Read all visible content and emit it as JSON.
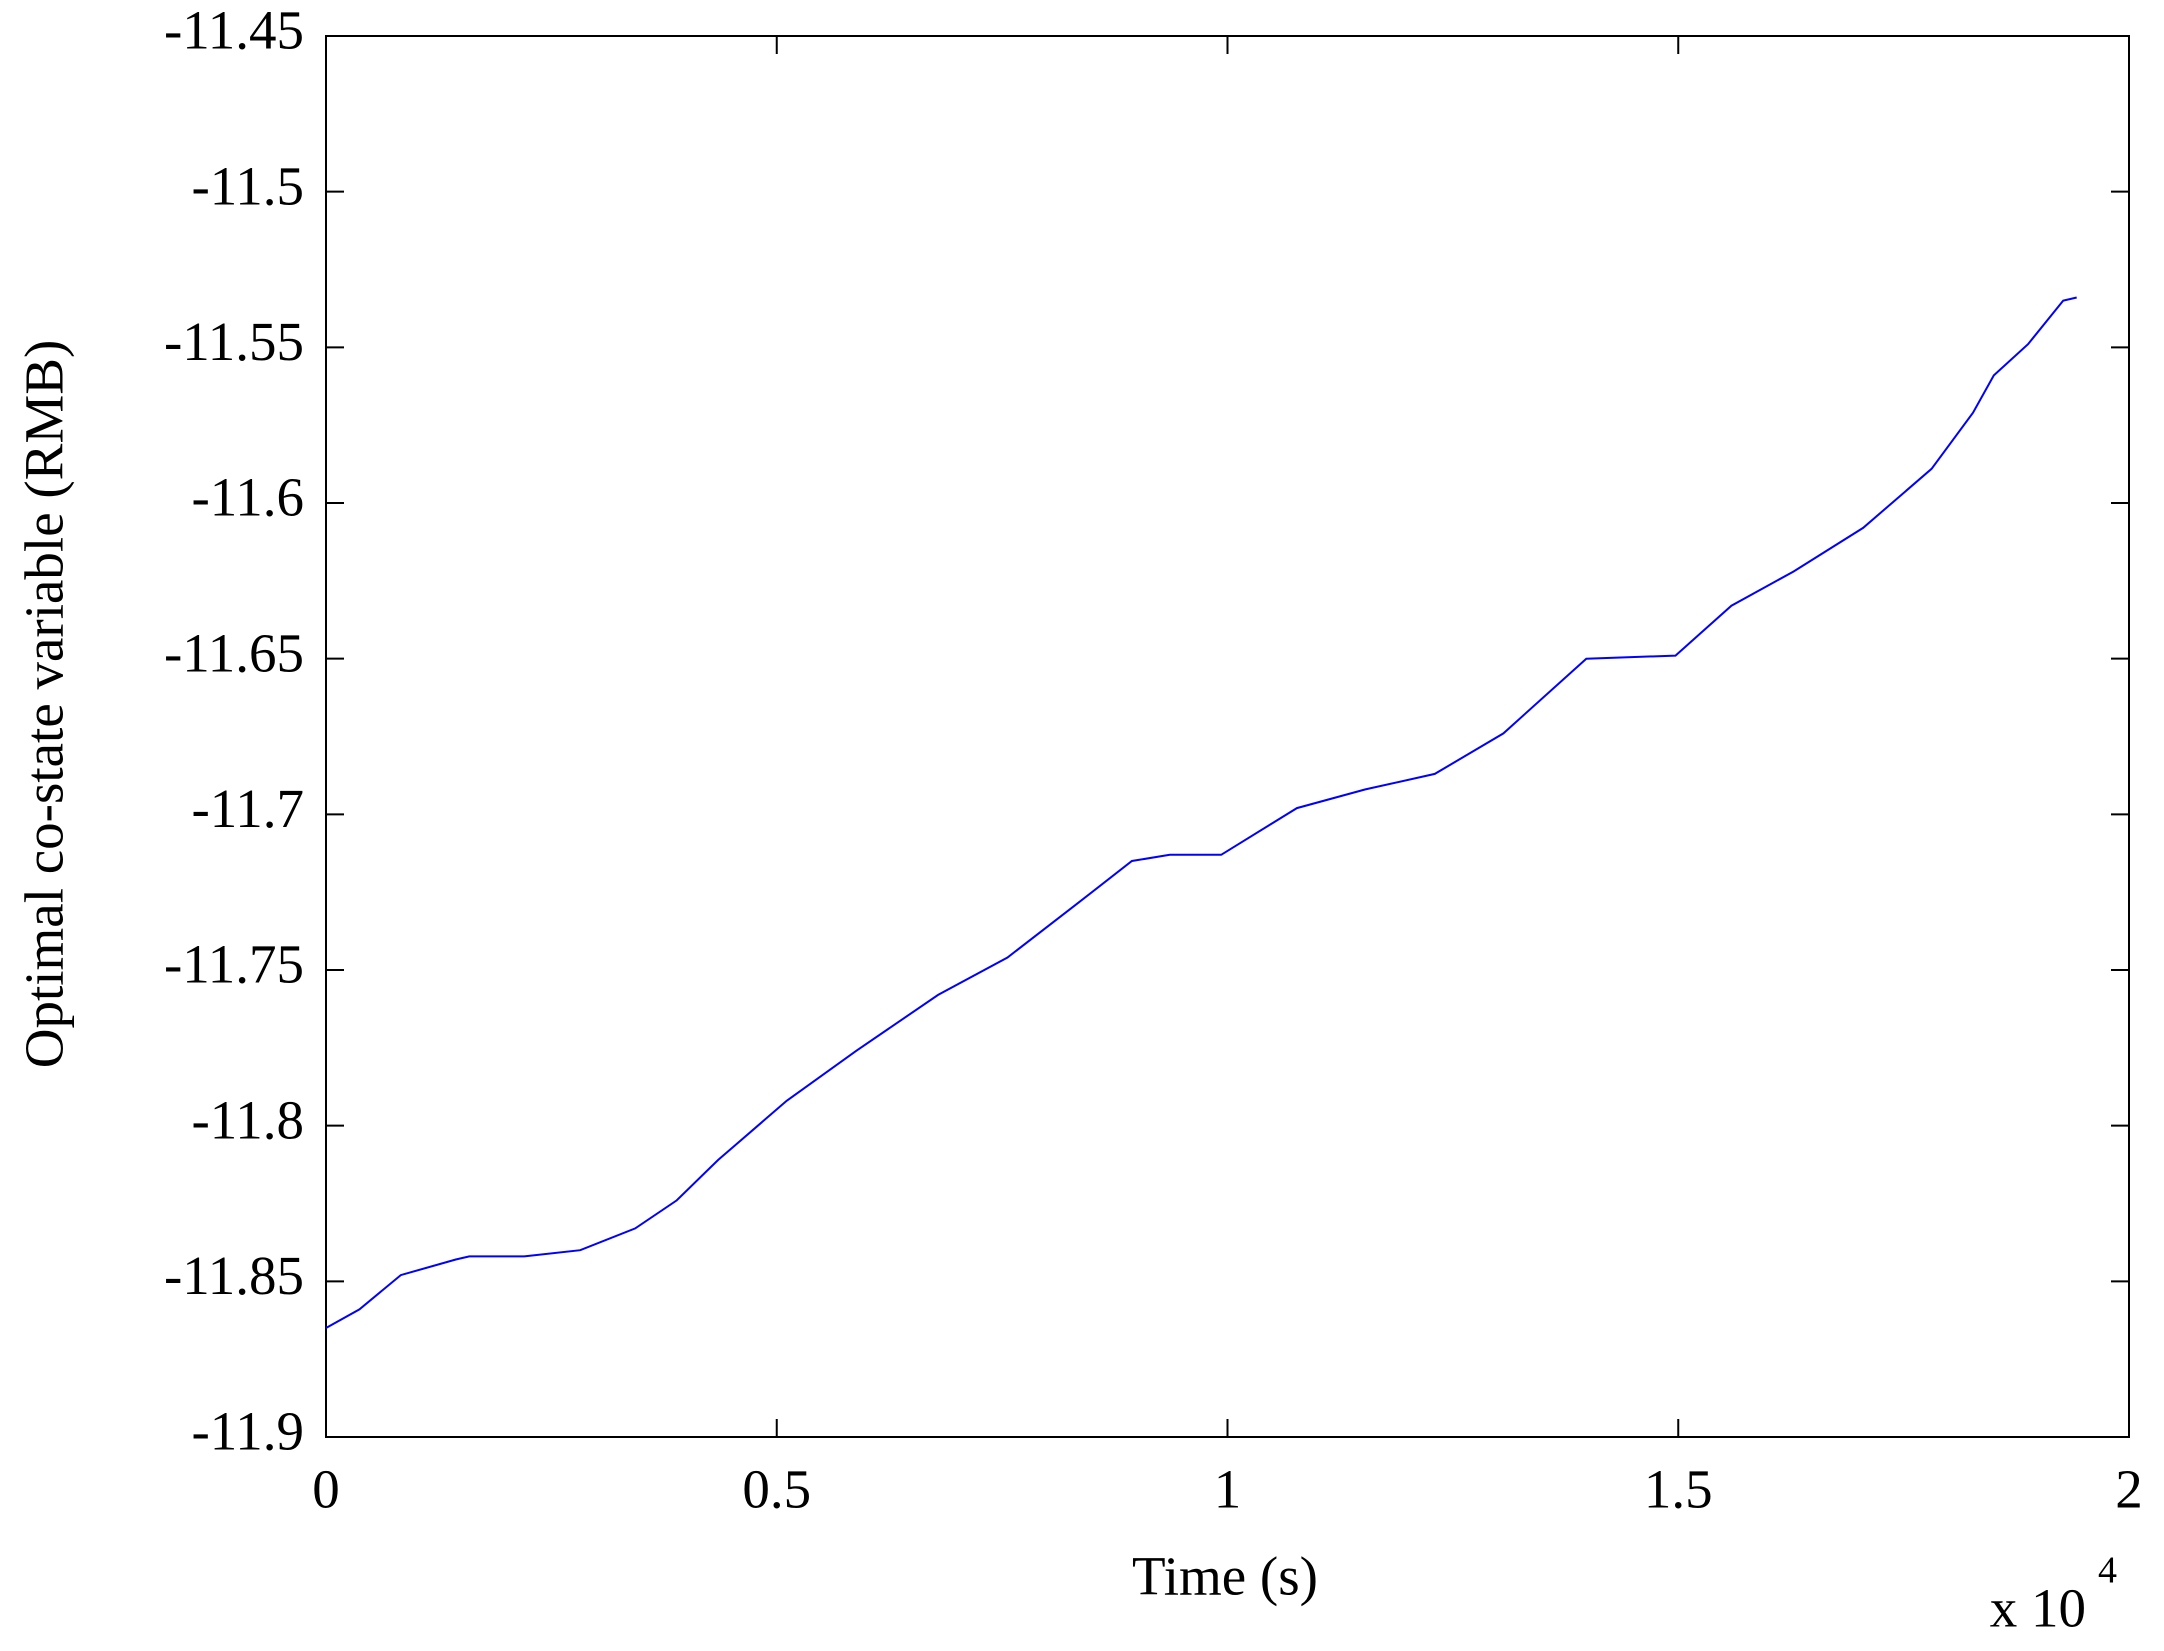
{
  "chart_data": {
    "type": "line",
    "x_label": "Time (s)",
    "y_label": "Optimal co-state variable (RMB)",
    "x_multiplier": {
      "base": "x 10",
      "exponent": "4"
    },
    "x": [
      0,
      0.037,
      0.083,
      0.144,
      0.159,
      0.22,
      0.282,
      0.343,
      0.389,
      0.435,
      0.511,
      0.588,
      0.679,
      0.756,
      0.832,
      0.894,
      0.936,
      0.993,
      1.077,
      1.153,
      1.23,
      1.306,
      1.398,
      1.497,
      1.559,
      1.628,
      1.705,
      1.781,
      1.827,
      1.85,
      1.888,
      1.927,
      1.942
    ],
    "series": [
      {
        "color": "#0000ff",
        "values": [
          -11.865,
          -11.859,
          -11.848,
          -11.843,
          -11.842,
          -11.842,
          -11.84,
          -11.833,
          -11.824,
          -11.811,
          -11.792,
          -11.776,
          -11.758,
          -11.746,
          -11.729,
          -11.715,
          -11.713,
          -11.713,
          -11.698,
          -11.692,
          -11.687,
          -11.674,
          -11.65,
          -11.649,
          -11.633,
          -11.622,
          -11.608,
          -11.589,
          -11.571,
          -11.559,
          -11.549,
          -11.535,
          -11.534
        ]
      }
    ],
    "xlim": [
      0,
      2
    ],
    "xticks": [
      0,
      0.5,
      1,
      1.5,
      2
    ],
    "ylim": [
      -11.9,
      -11.45
    ],
    "yticks": [
      -11.9,
      -11.85,
      -11.8,
      -11.75,
      -11.7,
      -11.65,
      -11.6,
      -11.55,
      -11.5,
      -11.45
    ],
    "grid": false
  }
}
